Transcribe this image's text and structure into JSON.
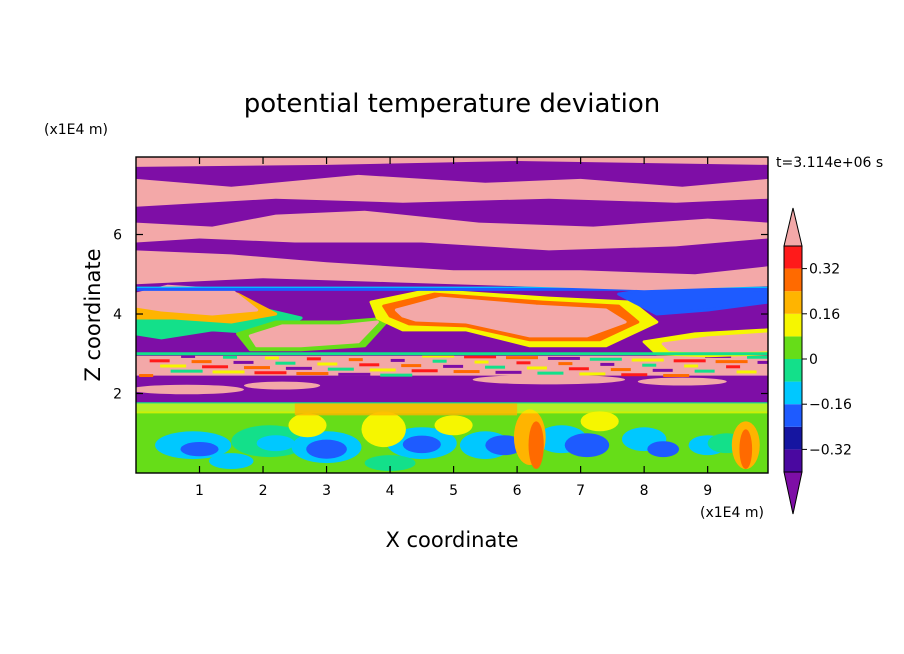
{
  "chart_data": {
    "type": "heatmap",
    "title": "potential temperature deviation",
    "xlabel": "X coordinate",
    "ylabel": "Z coordinate",
    "x_units": "(x1E4 m)",
    "y_units": "(x1E4 m)",
    "time_label": "t=3.114e+06 s",
    "xlim": [
      0,
      9.95
    ],
    "ylim": [
      0,
      7.95
    ],
    "x_ticks": [
      "1",
      "2",
      "3",
      "4",
      "5",
      "6",
      "7",
      "8",
      "9"
    ],
    "y_ticks": [
      "2",
      "4",
      "6"
    ],
    "colorbar": {
      "min": -0.4,
      "max": 0.4,
      "levels": [
        -0.4,
        -0.32,
        -0.24,
        -0.16,
        -0.08,
        0,
        0.08,
        0.16,
        0.24,
        0.32,
        0.4
      ],
      "tick_labels": [
        "0.32",
        "0.16",
        "0",
        "−0.16",
        "−0.32"
      ],
      "tick_values": [
        0.32,
        0.16,
        0,
        -0.16,
        -0.32
      ],
      "extend": "both",
      "under_color": "#7e0ea6",
      "over_color": "#f3a8a8",
      "colors": [
        "#4a08a0",
        "#1515a0",
        "#1e5bff",
        "#00c8ff",
        "#13e08a",
        "#66dd18",
        "#f6f600",
        "#ffb400",
        "#ff6a00",
        "#ff1a1a"
      ]
    },
    "regions": [
      {
        "z_range": [
          0,
          1.7
        ],
        "description": "turbulent eddies, values about -0.3 to 0.3"
      },
      {
        "z_range": [
          1.7,
          2.3
        ],
        "value": "below -0.4"
      },
      {
        "z_range": [
          2.3,
          3.0
        ],
        "value": "mixed, mostly above 0.4"
      },
      {
        "z_range": [
          3.0,
          4.6
        ],
        "value": "mixed above 0.4 / below -0.4 with transition bands"
      },
      {
        "z_range": [
          4.6,
          7.95
        ],
        "value": "alternating layers above 0.4 and below -0.4"
      }
    ]
  }
}
